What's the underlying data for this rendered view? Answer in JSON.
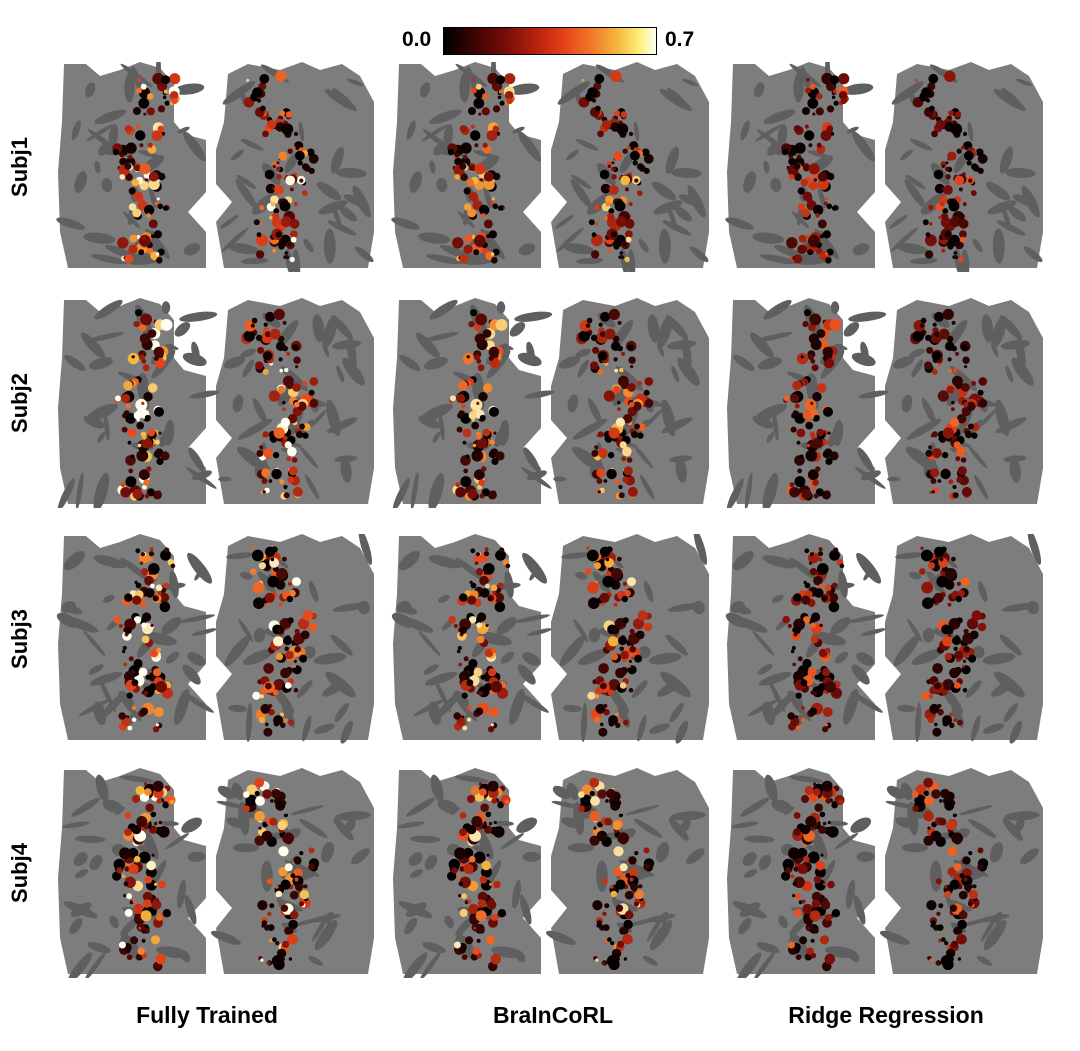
{
  "colorbar": {
    "min_label": "0.0",
    "max_label": "0.7",
    "colormap_stops": [
      "#000000",
      "#7a0e08",
      "#e8461c",
      "#f5b83e",
      "#fffff0"
    ]
  },
  "rows": [
    {
      "label": "Subj1"
    },
    {
      "label": "Subj2"
    },
    {
      "label": "Subj3"
    },
    {
      "label": "Subj4"
    }
  ],
  "columns": [
    {
      "label": "Fully Trained",
      "intensity": 1.0
    },
    {
      "label": "BraInCoRL",
      "intensity": 0.82
    },
    {
      "label": "Ridge Regression",
      "intensity": 0.55
    }
  ],
  "colors": {
    "cortex_base": "#7d7d7d",
    "cortex_sulci": "#5f5f5f"
  }
}
